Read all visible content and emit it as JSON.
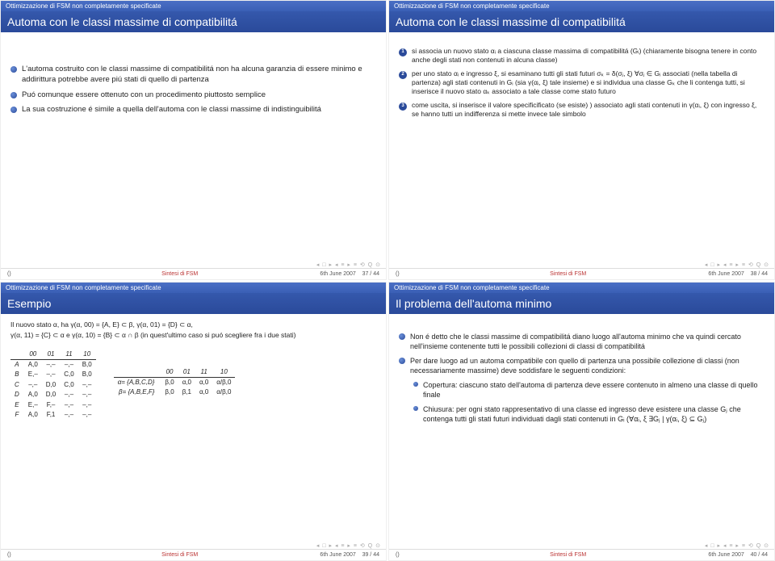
{
  "common": {
    "breadcrumb": "Ottimizzazione di FSM non completamente specificate",
    "footer_center": "Sintesi di FSM",
    "footer_date": "6th June 2007",
    "footer_left": "()"
  },
  "slides": [
    {
      "title": "Automa con le classi massime di compatibilitá",
      "page": "37 / 44",
      "bullets": [
        "L'automa costruito con le classi massime di compatibilitá non ha alcuna garanzia di essere minimo e addirittura potrebbe avere piú stati di quello di partenza",
        "Puó comunque essere ottenuto con un procedimento piuttosto semplice",
        "La sua costruzione é simile a quella dell'automa con le classi massime di indistinguibilitá"
      ]
    },
    {
      "title": "Automa con le classi massime di compatibilitá",
      "page": "38 / 44",
      "items": [
        "si associa un nuovo stato αᵢ a ciascuna classe massima di compatibilitá (Gᵢ) (chiaramente bisogna tenere in conto anche degli stati non contenuti in alcuna classe)",
        "per uno stato αᵢ e ingresso ξ, si esaminano tutti gli stati futuri σₖ = δ(σⱼ, ξ) ∀σⱼ ∈ Gᵢ associati (nella tabella di partenza) agli stati contenuti in Gᵢ (sia γ(αᵢ, ξ) tale insieme) e si individua una classe Gₖ che li contenga tutti, si inserisce il nuovo stato αₖ associato a tale classe come stato futuro",
        "come uscita, si inserisce il valore specificificato (se esiste) ) associato agli stati contenuti in γ(αᵢ, ξ) con ingresso ξ, se hanno tutti un indifferenza si mette invece tale simbolo"
      ]
    },
    {
      "title": "Esempio",
      "page": "39 / 44",
      "intro1": "Il nuovo stato α, ha γ(α, 00) = {A, E} ⊂ β, γ(α, 01) = {D} ⊂ α,",
      "intro2": "γ(α, 11) = {C} ⊂ α e γ(α, 10) = {B} ⊂ α ∩ β (in quest'ultimo caso si puó scegliere fra i due stati)",
      "table1": {
        "cols": [
          "00",
          "01",
          "11",
          "10"
        ],
        "rows": [
          {
            "h": "A",
            "c": [
              "A,0",
              "–,–",
              "–,–",
              "B,0"
            ]
          },
          {
            "h": "B",
            "c": [
              "E,–",
              "–,–",
              "C,0",
              "B,0"
            ]
          },
          {
            "h": "C",
            "c": [
              "–,–",
              "D,0",
              "C,0",
              "–,–"
            ]
          },
          {
            "h": "D",
            "c": [
              "A,0",
              "D,0",
              "–,–",
              "–,–"
            ]
          },
          {
            "h": "E",
            "c": [
              "E,–",
              "F,–",
              "–,–",
              "–,–"
            ]
          },
          {
            "h": "F",
            "c": [
              "A,0",
              "F,1",
              "–,–",
              "–,–"
            ]
          }
        ]
      },
      "eq1": "α= {A,B,C,D}",
      "eq2": "β= {A,B,E,F}",
      "table2": {
        "cols": [
          "00",
          "01",
          "11",
          "10"
        ],
        "rows": [
          {
            "c": [
              "β,0",
              "α,0",
              "α,0",
              "α/β,0"
            ]
          },
          {
            "c": [
              "β,0",
              "β,1",
              "α,0",
              "α/β,0"
            ]
          }
        ]
      }
    },
    {
      "title": "Il problema dell'automa minimo",
      "page": "40 / 44",
      "bullets": [
        "Non é detto che le classi massime di compatibilitá diano luogo all'automa minimo che va quindi cercato nell'insieme contenente tutti le possibili collezioni di classi di compatibilitá",
        "Per dare luogo ad un automa compatibile con quello di partenza una possibile collezione di classi (non necessariamente massime) deve soddisfare le seguenti condizioni:"
      ],
      "subbullets": [
        "Copertura: ciascuno stato dell'automa di partenza deve essere contenuto in almeno una classe di quello finale",
        "Chiusura: per ogni stato rappresentativo di una classe ed ingresso deve esistere una classe Gⱼ che contenga tutti gli stati futuri individuati dagli stati contenuti in Gᵢ (∀αᵢ, ξ ∃Gⱼ | γ(αᵢ, ξ) ⊆ Gⱼ)"
      ]
    }
  ]
}
